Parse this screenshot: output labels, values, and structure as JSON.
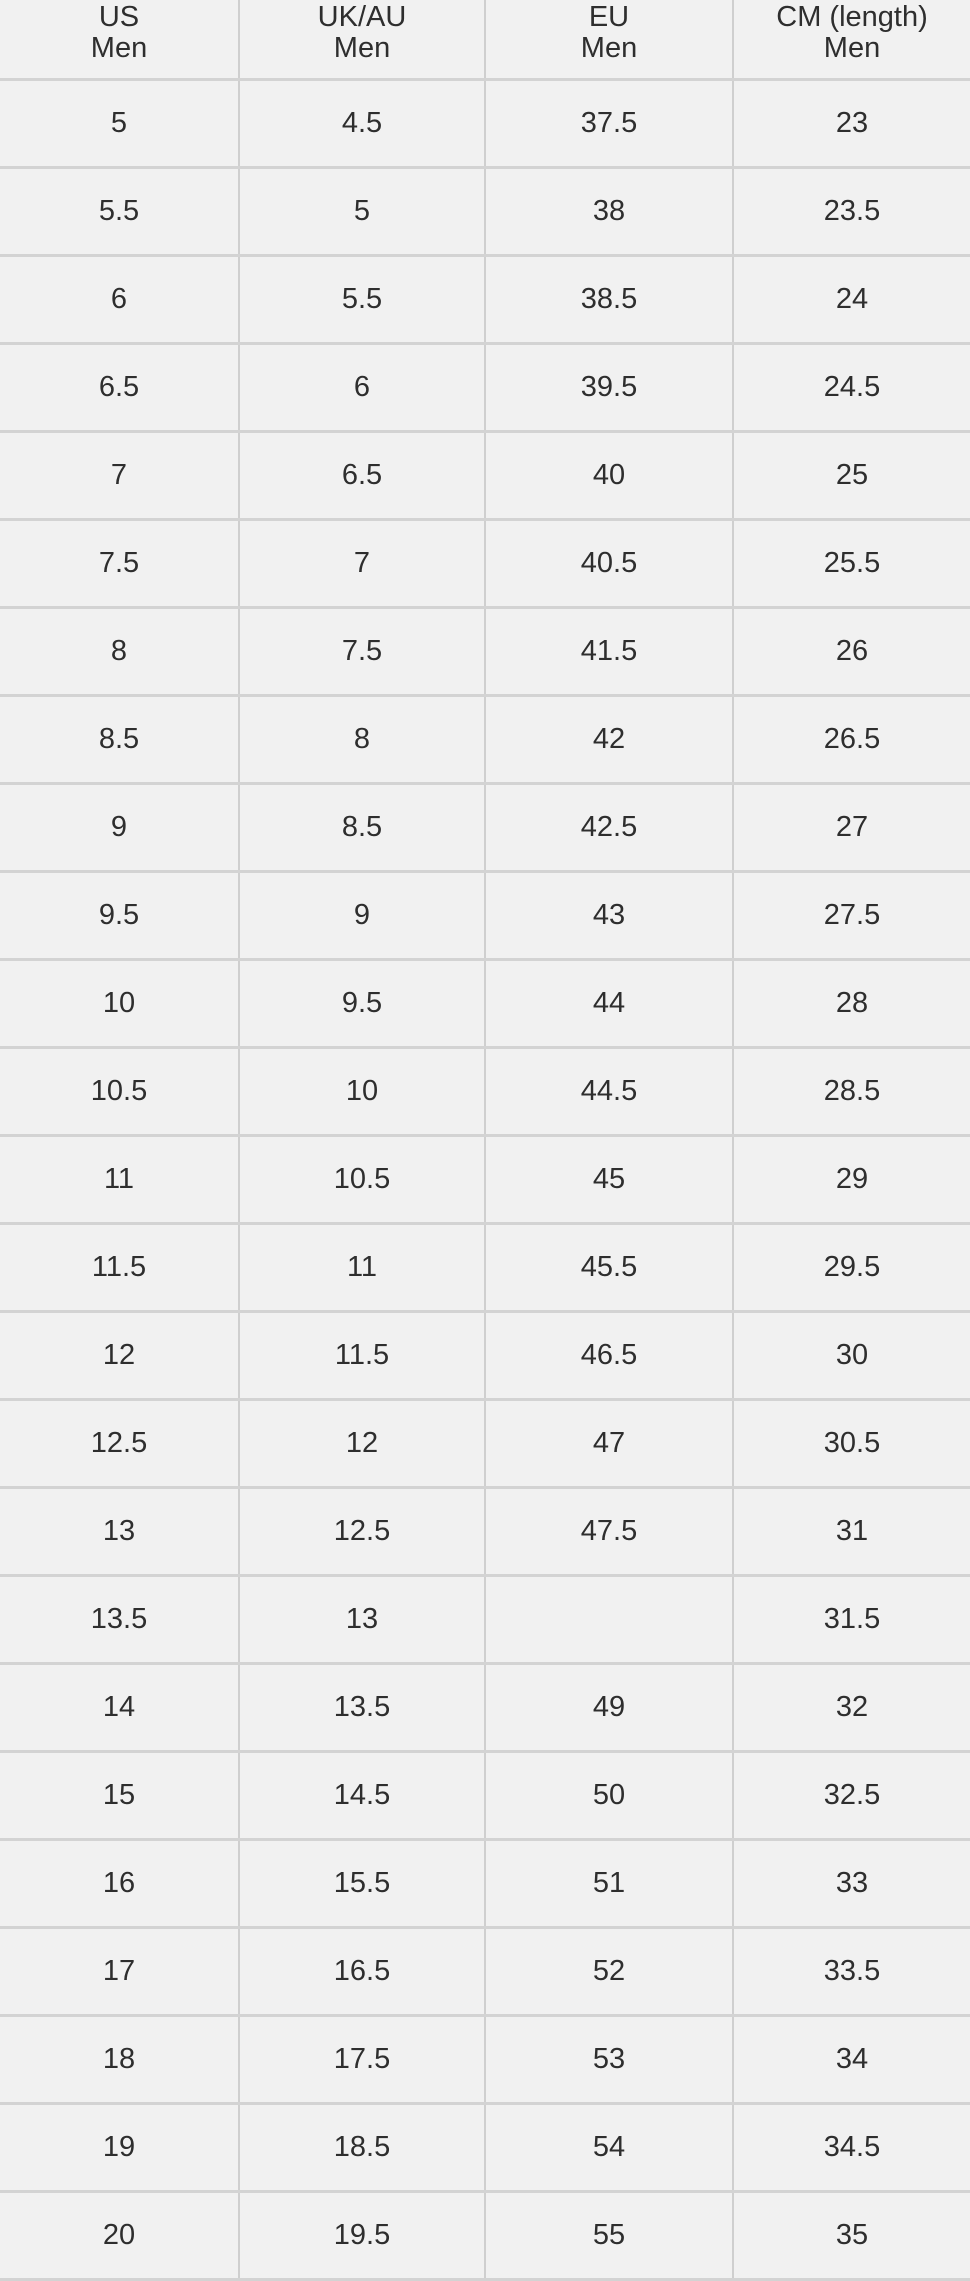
{
  "table": {
    "headers": [
      {
        "line1": "US",
        "line2": "Men"
      },
      {
        "line1": "UK/AU",
        "line2": "Men"
      },
      {
        "line1": "EU",
        "line2": "Men"
      },
      {
        "line1": "CM (length)",
        "line2": "Men"
      }
    ],
    "rows": [
      [
        "5",
        "4.5",
        "37.5",
        "23"
      ],
      [
        "5.5",
        "5",
        "38",
        "23.5"
      ],
      [
        "6",
        "5.5",
        "38.5",
        "24"
      ],
      [
        "6.5",
        "6",
        "39.5",
        "24.5"
      ],
      [
        "7",
        "6.5",
        "40",
        "25"
      ],
      [
        "7.5",
        "7",
        "40.5",
        "25.5"
      ],
      [
        "8",
        "7.5",
        "41.5",
        "26"
      ],
      [
        "8.5",
        "8",
        "42",
        "26.5"
      ],
      [
        "9",
        "8.5",
        "42.5",
        "27"
      ],
      [
        "9.5",
        "9",
        "43",
        "27.5"
      ],
      [
        "10",
        "9.5",
        "44",
        "28"
      ],
      [
        "10.5",
        "10",
        "44.5",
        "28.5"
      ],
      [
        "11",
        "10.5",
        "45",
        "29"
      ],
      [
        "11.5",
        "11",
        "45.5",
        "29.5"
      ],
      [
        "12",
        "11.5",
        "46.5",
        "30"
      ],
      [
        "12.5",
        "12",
        "47",
        "30.5"
      ],
      [
        "13",
        "12.5",
        "47.5",
        "31"
      ],
      [
        "13.5",
        "13",
        "",
        "31.5"
      ],
      [
        "14",
        "13.5",
        "49",
        "32"
      ],
      [
        "15",
        "14.5",
        "50",
        "32.5"
      ],
      [
        "16",
        "15.5",
        "51",
        "33"
      ],
      [
        "17",
        "16.5",
        "52",
        "33.5"
      ],
      [
        "18",
        "17.5",
        "53",
        "34"
      ],
      [
        "19",
        "18.5",
        "54",
        "34.5"
      ],
      [
        "20",
        "19.5",
        "55",
        "35"
      ]
    ]
  }
}
